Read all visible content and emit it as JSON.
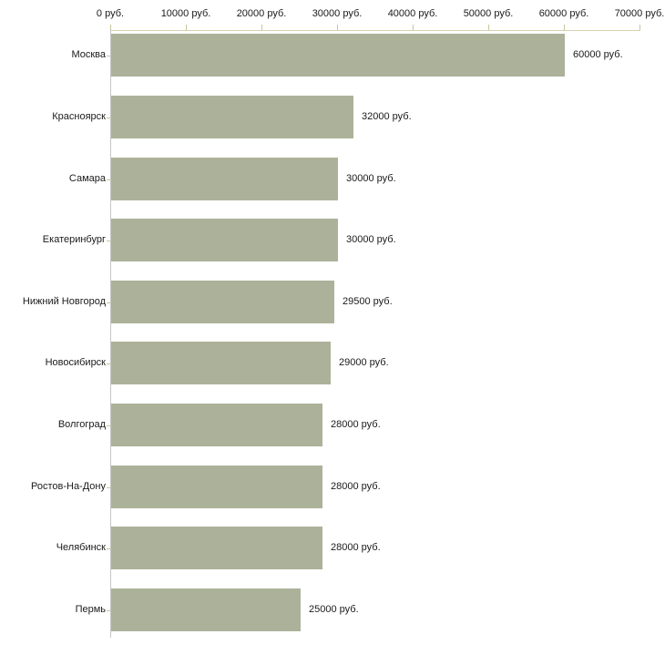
{
  "chart_data": {
    "type": "bar",
    "orientation": "horizontal",
    "title": "",
    "xlabel": "",
    "ylabel": "",
    "grid": false,
    "legend": false,
    "categories": [
      "Москва",
      "Красноярск",
      "Самара",
      "Екатеринбург",
      "Нижний Новгород",
      "Новосибирск",
      "Волгоград",
      "Ростов-На-Дону",
      "Челябинск",
      "Пермь"
    ],
    "values": [
      60000,
      32000,
      30000,
      30000,
      29500,
      29000,
      28000,
      28000,
      28000,
      25000
    ],
    "value_labels": [
      "60000 руб.",
      "32000 руб.",
      "30000 руб.",
      "30000 руб.",
      "29500 руб.",
      "29000 руб.",
      "28000 руб.",
      "28000 руб.",
      "28000 руб.",
      "25000 руб."
    ],
    "x_ticks": [
      0,
      10000,
      20000,
      30000,
      40000,
      50000,
      60000,
      70000
    ],
    "x_tick_labels": [
      "0 руб.",
      "10000 руб.",
      "20000 руб.",
      "30000 руб.",
      "40000 руб.",
      "50000 руб.",
      "60000 руб.",
      "70000 руб."
    ],
    "xlim": [
      0,
      70000
    ],
    "colors": {
      "bar": "#acb29a",
      "axis_line": "#d6d2b2",
      "tick": "#c9c59c",
      "y_axis_line": "#c6c6c6",
      "text": "#1a1a1a",
      "background": "#ffffff"
    }
  }
}
